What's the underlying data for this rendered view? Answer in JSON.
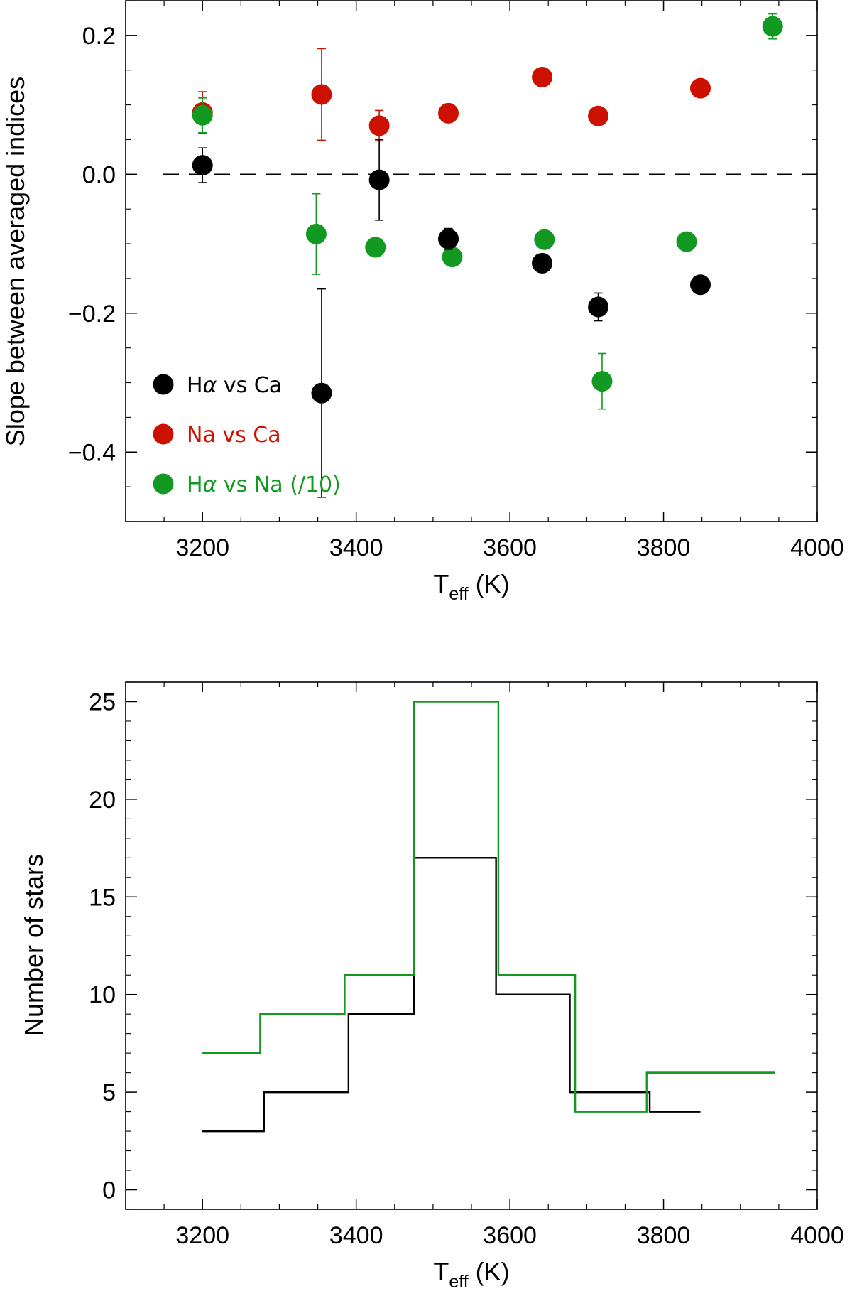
{
  "chart_data": [
    {
      "type": "scatter",
      "xlabel": "T",
      "xlabel_sub": "eff",
      "xlabel_unit": " (K)",
      "ylabel": "Slope between averaged indices",
      "xlim": [
        3100,
        4000
      ],
      "ylim": [
        -0.5,
        0.25
      ],
      "xticks": [
        3200,
        3400,
        3600,
        3800,
        4000
      ],
      "xtick_labels": [
        "3200",
        "3400",
        "3600",
        "3800",
        "4000"
      ],
      "yticks": [
        -0.4,
        -0.2,
        0.0,
        0.2
      ],
      "ytick_labels": [
        "−0.4",
        "−0.2",
        "0.0",
        "0.2"
      ],
      "reference_line": {
        "y": 0.0,
        "style": "dashed"
      },
      "series": [
        {
          "name": "Ha vs Ca",
          "label_prefix": "H",
          "label_greek": "α",
          "label_rest": " vs Ca",
          "color": "#000000",
          "points": [
            {
              "x": 3200,
              "y": 0.013,
              "err": 0.025
            },
            {
              "x": 3355,
              "y": -0.315,
              "err": 0.15
            },
            {
              "x": 3430,
              "y": -0.008,
              "err": 0.058
            },
            {
              "x": 3520,
              "y": -0.093,
              "err": 0.015
            },
            {
              "x": 3642,
              "y": -0.128,
              "err": 0.0
            },
            {
              "x": 3715,
              "y": -0.191,
              "err": 0.02
            },
            {
              "x": 3848,
              "y": -0.159,
              "err": 0.0
            }
          ]
        },
        {
          "name": "Na vs Ca",
          "label_prefix": "Na vs Ca",
          "label_greek": "",
          "label_rest": "",
          "color": "#cc1100",
          "points": [
            {
              "x": 3200,
              "y": 0.089,
              "err": 0.03
            },
            {
              "x": 3355,
              "y": 0.115,
              "err": 0.066
            },
            {
              "x": 3430,
              "y": 0.07,
              "err": 0.022
            },
            {
              "x": 3520,
              "y": 0.088,
              "err": 0.0
            },
            {
              "x": 3642,
              "y": 0.14,
              "err": 0.0
            },
            {
              "x": 3715,
              "y": 0.084,
              "err": 0.0
            },
            {
              "x": 3848,
              "y": 0.124,
              "err": 0.0
            }
          ]
        },
        {
          "name": "Ha vs Na (/10)",
          "label_prefix": "H",
          "label_greek": "α",
          "label_rest": " vs Na  (/10)",
          "color": "#119922",
          "points": [
            {
              "x": 3200,
              "y": 0.085,
              "err": 0.025
            },
            {
              "x": 3348,
              "y": -0.086,
              "err": 0.058
            },
            {
              "x": 3425,
              "y": -0.105,
              "err": 0.0
            },
            {
              "x": 3525,
              "y": -0.119,
              "err": 0.0
            },
            {
              "x": 3645,
              "y": -0.094,
              "err": 0.0
            },
            {
              "x": 3720,
              "y": -0.298,
              "err": 0.04
            },
            {
              "x": 3830,
              "y": -0.097,
              "err": 0.0
            },
            {
              "x": 3942,
              "y": 0.213,
              "err": 0.018
            }
          ]
        }
      ]
    },
    {
      "type": "histogram-step",
      "xlabel": "T",
      "xlabel_sub": "eff",
      "xlabel_unit": " (K)",
      "ylabel": "Number of stars",
      "xlim": [
        3100,
        4000
      ],
      "ylim": [
        -1,
        26
      ],
      "xticks": [
        3200,
        3400,
        3600,
        3800,
        4000
      ],
      "xtick_labels": [
        "3200",
        "3400",
        "3600",
        "3800",
        "4000"
      ],
      "yticks": [
        0,
        5,
        10,
        15,
        20,
        25
      ],
      "ytick_labels": [
        "0",
        "5",
        "10",
        "15",
        "20",
        "25"
      ],
      "series": [
        {
          "name": "black",
          "color": "#000000",
          "edges": [
            3200,
            3280,
            3390,
            3475,
            3582,
            3678,
            3782,
            3848
          ],
          "counts": [
            3,
            5,
            9,
            17,
            10,
            5,
            4
          ]
        },
        {
          "name": "green",
          "color": "#119922",
          "edges": [
            3200,
            3275,
            3385,
            3475,
            3585,
            3685,
            3778,
            3945
          ],
          "counts": [
            7,
            9,
            11,
            25,
            11,
            4,
            6
          ]
        }
      ]
    }
  ]
}
